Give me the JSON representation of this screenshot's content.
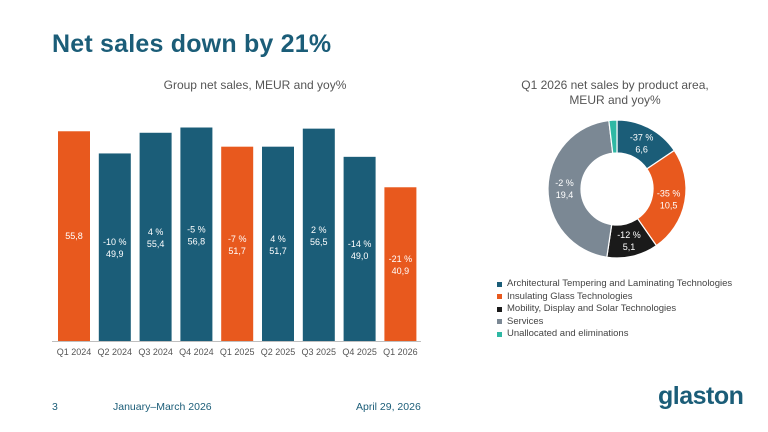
{
  "title": "Net sales down by 21%",
  "footer": {
    "page": "3",
    "period": "January–March 2026",
    "date": "April 29, 2026"
  },
  "logo_text": "glaston",
  "colors": {
    "navy": "#1b5d78",
    "orange": "#e8591e",
    "black": "#1a1a1a",
    "gray": "#7b8894",
    "teal": "#2fb8a4",
    "title": "#1b5d78"
  },
  "chart_data": [
    {
      "type": "bar",
      "title": "Group net sales, MEUR and yoy%",
      "categories": [
        "Q1 2024",
        "Q2 2024",
        "Q3 2024",
        "Q4 2024",
        "Q1 2025",
        "Q2 2025",
        "Q3 2025",
        "Q4 2025",
        "Q1 2026"
      ],
      "values": [
        55.8,
        49.9,
        55.4,
        56.8,
        51.7,
        51.7,
        56.5,
        49.0,
        40.9
      ],
      "value_labels": [
        "55,8",
        "49,9",
        "55,4",
        "56,8",
        "51,7",
        "51,7",
        "56,5",
        "49,0",
        "40,9"
      ],
      "yoy_labels": [
        "",
        "-10 %",
        "4 %",
        "-5 %",
        "-7 %",
        "4 %",
        "2 %",
        "-14 %",
        "-21 %"
      ],
      "bar_colors": [
        "#e8591e",
        "#1b5d78",
        "#1b5d78",
        "#1b5d78",
        "#e8591e",
        "#1b5d78",
        "#1b5d78",
        "#1b5d78",
        "#e8591e"
      ],
      "ylim": [
        0,
        58
      ]
    },
    {
      "type": "pie",
      "title": "Q1 2026 net sales by product area,\nMEUR and yoy%",
      "slices": [
        {
          "name": "Architectural Tempering and Laminating Technologies",
          "value": 6.6,
          "value_label": "6,6",
          "yoy": "-37 %",
          "color": "#1b5d78"
        },
        {
          "name": "Insulating Glass Technologies",
          "value": 10.5,
          "value_label": "10,5",
          "yoy": "-35 %",
          "color": "#e8591e"
        },
        {
          "name": "Mobility, Display and Solar Technologies",
          "value": 5.1,
          "value_label": "5,1",
          "yoy": "-12 %",
          "color": "#1a1a1a"
        },
        {
          "name": "Services",
          "value": 19.4,
          "value_label": "19,4",
          "yoy": "-2 %",
          "color": "#7b8894"
        },
        {
          "name": "Unallocated and eliminations",
          "value": 0.8,
          "value_label": "",
          "yoy": "",
          "color": "#2fb8a4"
        }
      ],
      "legend_placement": "bottom"
    }
  ]
}
